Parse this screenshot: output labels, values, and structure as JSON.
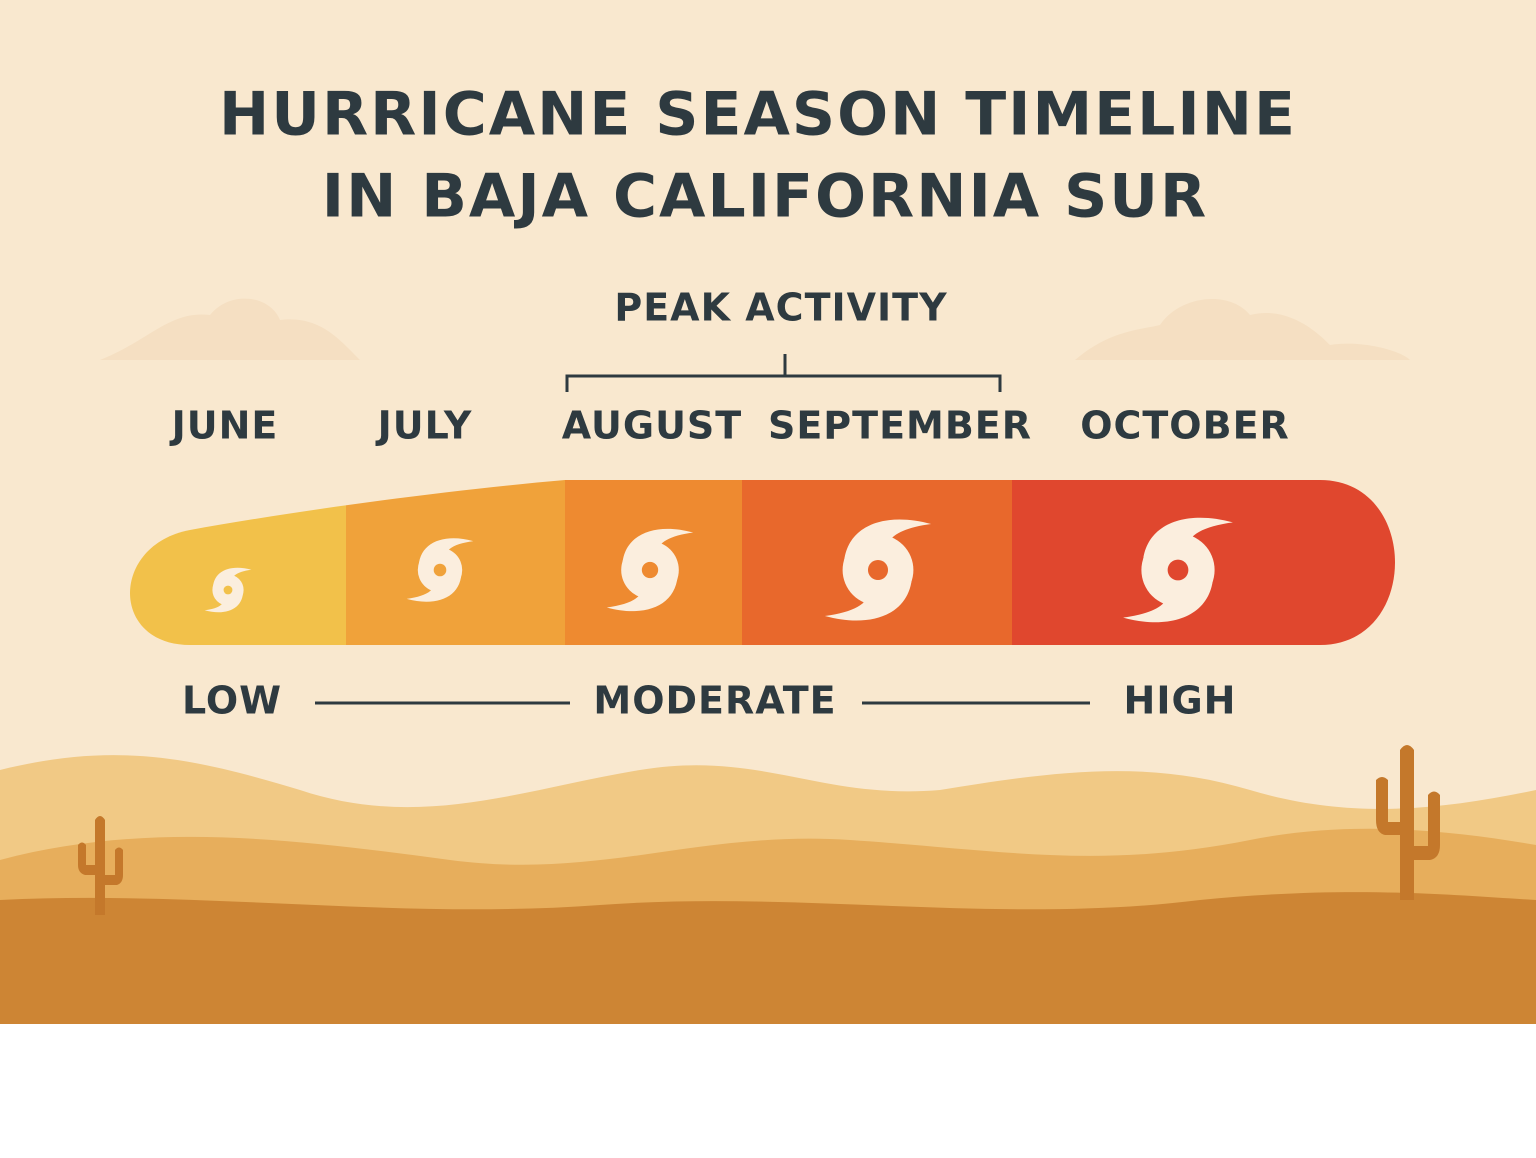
{
  "title": {
    "line1": "HURRICANE SEASON TIMELINE",
    "line2": "IN BAJA CALIFORNIA SUR"
  },
  "peak_label": "PEAK ACTIVITY",
  "months": [
    {
      "label": "JUNE",
      "color": "#f2c14a"
    },
    {
      "label": "JULY",
      "color": "#f0a23a"
    },
    {
      "label": "AUGUST",
      "color": "#ee8a30"
    },
    {
      "label": "SEPTEMBER",
      "color": "#e8682c"
    },
    {
      "label": "OCTOBER",
      "color": "#e0472e"
    }
  ],
  "scale": {
    "low": "LOW",
    "moderate": "MODERATE",
    "high": "HIGH"
  }
}
